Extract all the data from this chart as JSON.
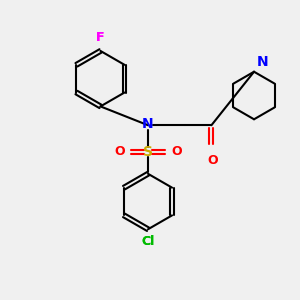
{
  "background_color": "#f0f0f0",
  "atom_colors": {
    "F": "#ff00ff",
    "N": "#0000ff",
    "S": "#ccaa00",
    "O": "#ff0000",
    "Cl": "#00bb00",
    "C": "#000000"
  },
  "bond_color": "#000000",
  "figsize": [
    3.0,
    3.0
  ],
  "dpi": 100
}
